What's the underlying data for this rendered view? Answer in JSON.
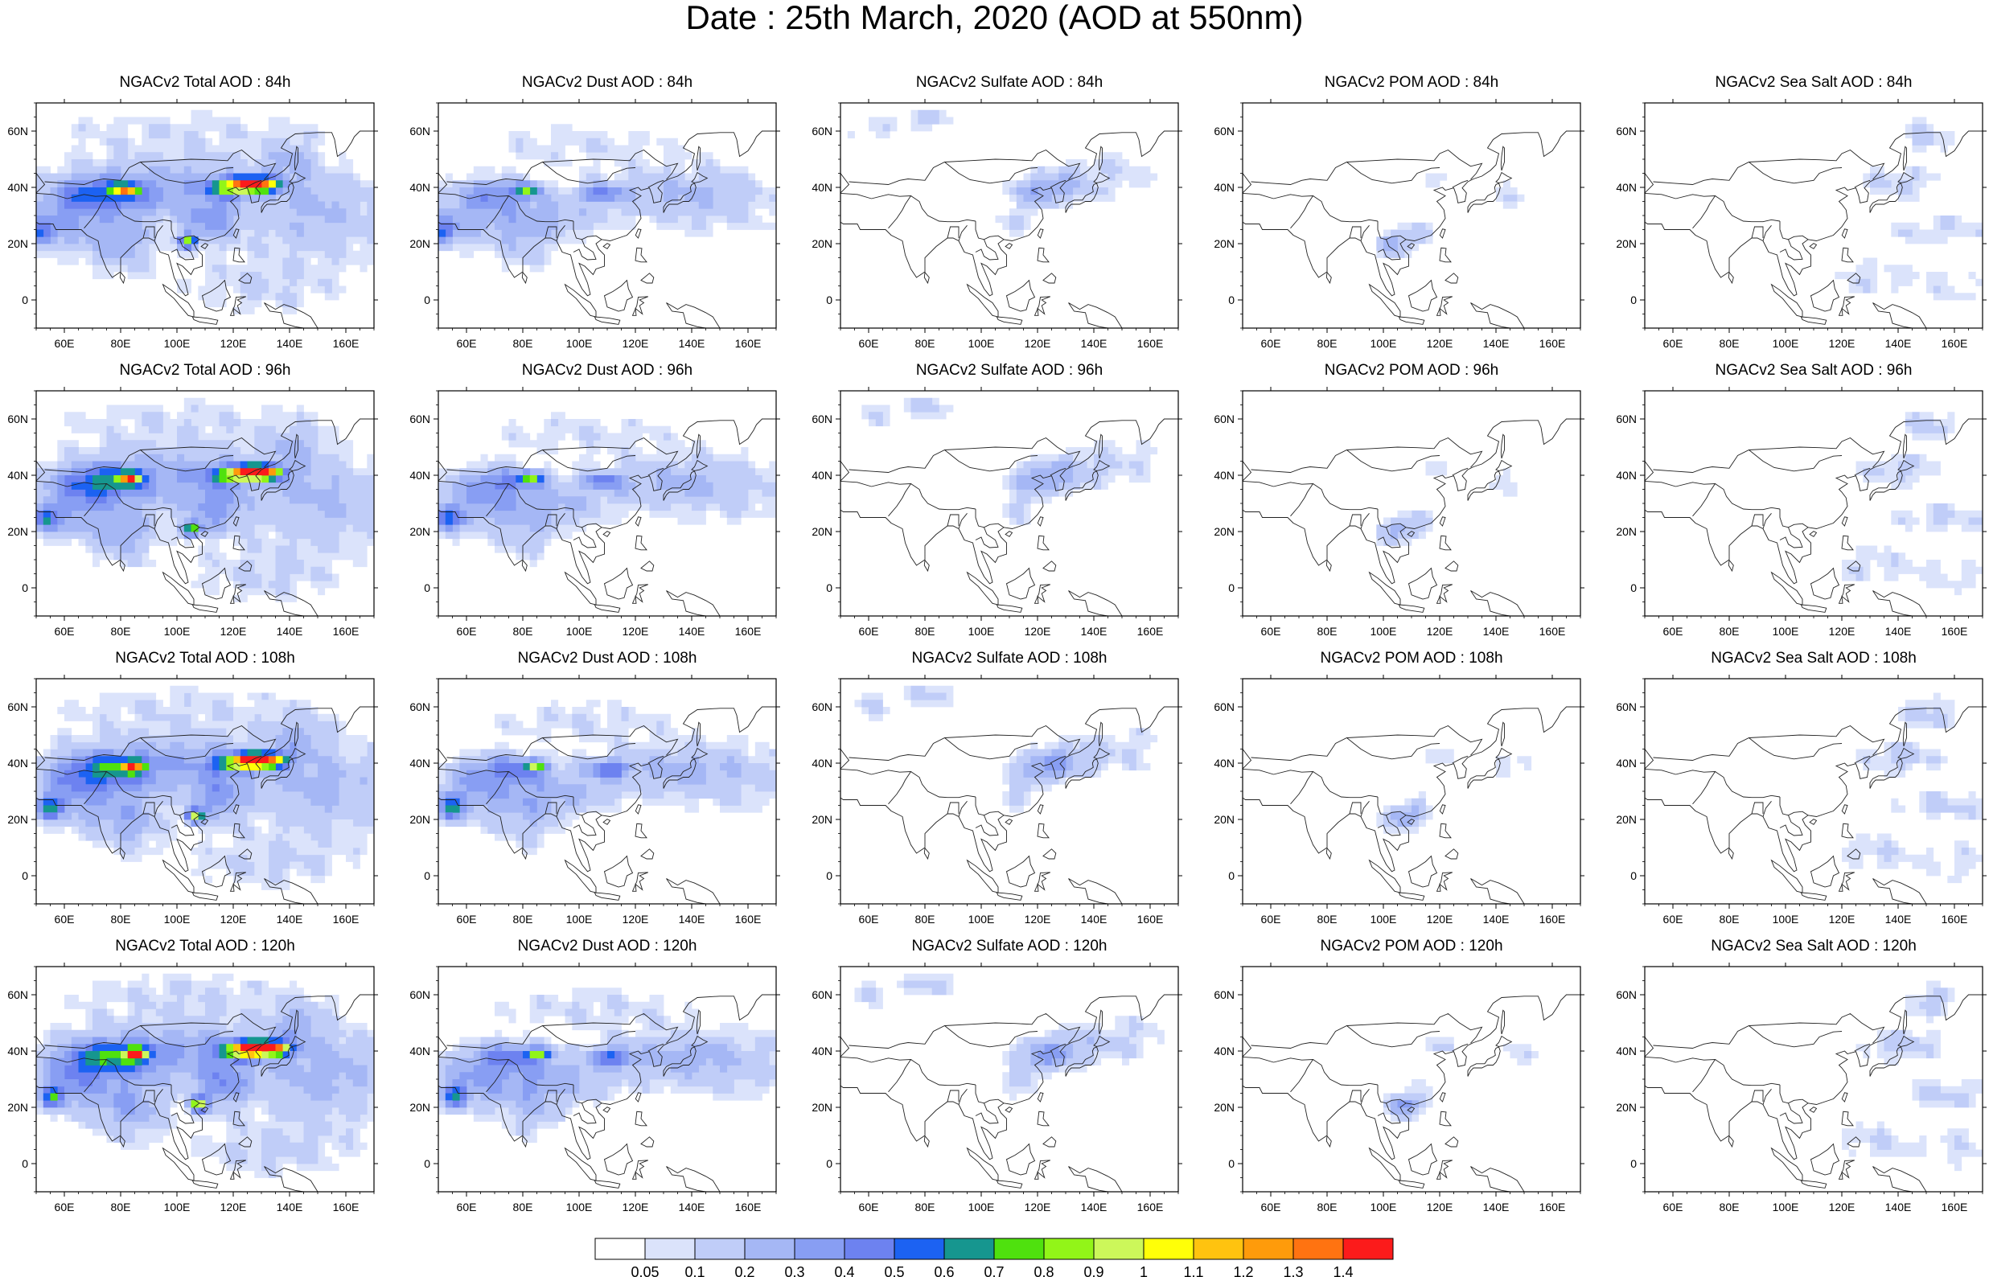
{
  "title": "Date : 25th March, 2020 (AOD at 550nm)",
  "species": [
    {
      "key": "total",
      "label": "NGACv2 Total AOD"
    },
    {
      "key": "dust",
      "label": "NGACv2 Dust AOD"
    },
    {
      "key": "sulfate",
      "label": "NGACv2 Sulfate AOD"
    },
    {
      "key": "pom",
      "label": "NGACv2 POM AOD"
    },
    {
      "key": "seasalt",
      "label": "NGACv2 Sea Salt AOD"
    }
  ],
  "panel_titles": [
    [
      "NGACv2 Total AOD : 84h",
      "NGACv2 Dust AOD : 84h",
      "NGACv2 Sulfate AOD : 84h",
      "NGACv2 POM AOD : 84h",
      "NGACv2 Sea Salt AOD : 84h"
    ],
    [
      "NGACv2 Total AOD : 96h",
      "NGACv2 Dust AOD : 96h",
      "NGACv2 Sulfate AOD : 96h",
      "NGACv2 POM AOD : 96h",
      "NGACv2 Sea Salt AOD : 96h"
    ],
    [
      "NGACv2 Total AOD : 108h",
      "NGACv2 Dust AOD : 108h",
      "NGACv2 Sulfate AOD : 108h",
      "NGACv2 POM AOD : 108h",
      "NGACv2 Sea Salt AOD : 108h"
    ],
    [
      "NGACv2 Total AOD : 120h",
      "NGACv2 Dust AOD : 120h",
      "NGACv2 Sulfate AOD : 120h",
      "NGACv2 POM AOD : 120h",
      "NGACv2 Sea Salt  AOD : 120h"
    ]
  ],
  "forecast_hours": [
    "84h",
    "96h",
    "108h",
    "120h"
  ],
  "map": {
    "lon_range": [
      50,
      170
    ],
    "lat_range": [
      -10,
      70
    ],
    "lon_ticks": [
      "60E",
      "80E",
      "100E",
      "120E",
      "140E",
      "160E"
    ],
    "lon_tick_values": [
      60,
      80,
      100,
      120,
      140,
      160
    ],
    "lat_ticks": [
      "60N",
      "40N",
      "20N",
      "0"
    ],
    "lat_tick_values": [
      60,
      40,
      20,
      0
    ]
  },
  "colorbar": {
    "levels": [
      "0.05",
      "0.1",
      "0.2",
      "0.3",
      "0.4",
      "0.5",
      "0.6",
      "0.7",
      "0.8",
      "0.9",
      "1",
      "1.1",
      "1.2",
      "1.3",
      "1.4"
    ],
    "colors": [
      "#ffffff",
      "#dbe3fb",
      "#c0cdf8",
      "#a5b7f5",
      "#889ef3",
      "#6d82f0",
      "#1c62f2",
      "#16968f",
      "#4fe10e",
      "#92f518",
      "#ccf75a",
      "#ffff08",
      "#ffc30f",
      "#fe9b0b",
      "#ff7311",
      "#fc1b1b"
    ]
  },
  "land_color": "#ffffff",
  "coast_color": "#222222"
}
